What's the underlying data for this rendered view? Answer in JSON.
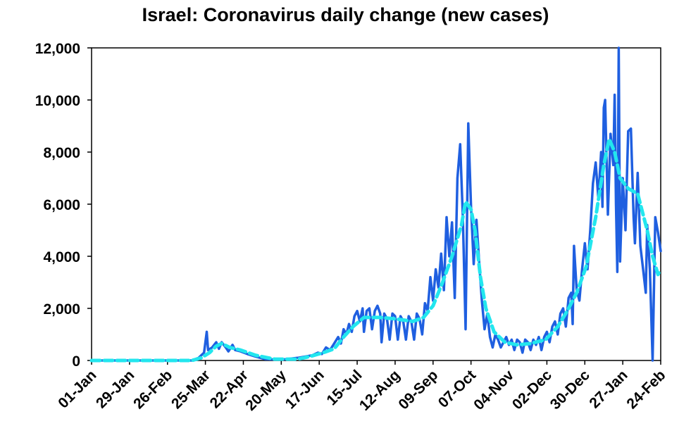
{
  "chart_data": {
    "type": "line",
    "title": "Israel: Coronavirus daily change (new cases)",
    "xlabel": "",
    "ylabel": "",
    "ylim": [
      0,
      12000
    ],
    "yticks": [
      "0",
      "2,000",
      "4,000",
      "6,000",
      "8,000",
      "10,000",
      "12,000"
    ],
    "ytick_values": [
      0,
      2000,
      4000,
      6000,
      8000,
      10000,
      12000
    ],
    "x_axis": {
      "type": "date",
      "range": [
        "2020-01-01",
        "2021-02-24"
      ]
    },
    "xticks": [
      "01-Jan",
      "29-Jan",
      "26-Feb",
      "25-Mar",
      "22-Apr",
      "20-May",
      "17-Jun",
      "15-Jul",
      "12-Aug",
      "09-Sep",
      "07-Oct",
      "04-Nov",
      "02-Dec",
      "30-Dec",
      "27-Jan",
      "24-Feb"
    ],
    "xtick_dates": [
      "2020-01-01",
      "2020-01-29",
      "2020-02-26",
      "2020-03-25",
      "2020-04-22",
      "2020-05-20",
      "2020-06-17",
      "2020-07-15",
      "2020-08-12",
      "2020-09-09",
      "2020-10-07",
      "2020-11-04",
      "2020-12-02",
      "2020-12-30",
      "2021-01-27",
      "2021-02-24"
    ],
    "grid": false,
    "legend": "none",
    "series": [
      {
        "color": "#1f5fe0",
        "style": "solid",
        "points": [
          [
            "2020-01-01",
            0
          ],
          [
            "2020-03-15",
            0
          ],
          [
            "2020-03-20",
            100
          ],
          [
            "2020-03-24",
            300
          ],
          [
            "2020-03-26",
            1100
          ],
          [
            "2020-03-27",
            400
          ],
          [
            "2020-03-30",
            500
          ],
          [
            "2020-04-02",
            700
          ],
          [
            "2020-04-04",
            450
          ],
          [
            "2020-04-06",
            700
          ],
          [
            "2020-04-09",
            500
          ],
          [
            "2020-04-11",
            350
          ],
          [
            "2020-04-14",
            600
          ],
          [
            "2020-04-16",
            400
          ],
          [
            "2020-04-20",
            350
          ],
          [
            "2020-04-25",
            250
          ],
          [
            "2020-05-01",
            150
          ],
          [
            "2020-05-08",
            50
          ],
          [
            "2020-05-20",
            30
          ],
          [
            "2020-06-01",
            100
          ],
          [
            "2020-06-07",
            150
          ],
          [
            "2020-06-12",
            200
          ],
          [
            "2020-06-16",
            300
          ],
          [
            "2020-06-19",
            250
          ],
          [
            "2020-06-22",
            500
          ],
          [
            "2020-06-25",
            400
          ],
          [
            "2020-06-28",
            650
          ],
          [
            "2020-07-01",
            900
          ],
          [
            "2020-07-03",
            650
          ],
          [
            "2020-07-05",
            1200
          ],
          [
            "2020-07-07",
            1000
          ],
          [
            "2020-07-09",
            1400
          ],
          [
            "2020-07-11",
            1100
          ],
          [
            "2020-07-13",
            1700
          ],
          [
            "2020-07-15",
            1900
          ],
          [
            "2020-07-17",
            1500
          ],
          [
            "2020-07-19",
            2000
          ],
          [
            "2020-07-20",
            1100
          ],
          [
            "2020-07-22",
            1900
          ],
          [
            "2020-07-24",
            2000
          ],
          [
            "2020-07-26",
            1200
          ],
          [
            "2020-07-28",
            1900
          ],
          [
            "2020-07-30",
            2100
          ],
          [
            "2020-08-01",
            1800
          ],
          [
            "2020-08-02",
            700
          ],
          [
            "2020-08-04",
            1800
          ],
          [
            "2020-08-06",
            1600
          ],
          [
            "2020-08-08",
            800
          ],
          [
            "2020-08-10",
            1800
          ],
          [
            "2020-08-12",
            1700
          ],
          [
            "2020-08-14",
            800
          ],
          [
            "2020-08-16",
            1700
          ],
          [
            "2020-08-18",
            1500
          ],
          [
            "2020-08-20",
            800
          ],
          [
            "2020-08-22",
            1700
          ],
          [
            "2020-08-24",
            1500
          ],
          [
            "2020-08-26",
            800
          ],
          [
            "2020-08-28",
            1800
          ],
          [
            "2020-08-30",
            1600
          ],
          [
            "2020-09-01",
            1000
          ],
          [
            "2020-09-03",
            2200
          ],
          [
            "2020-09-05",
            1900
          ],
          [
            "2020-09-07",
            3200
          ],
          [
            "2020-09-09",
            2300
          ],
          [
            "2020-09-11",
            3500
          ],
          [
            "2020-09-13",
            2800
          ],
          [
            "2020-09-15",
            4100
          ],
          [
            "2020-09-17",
            2700
          ],
          [
            "2020-09-19",
            5500
          ],
          [
            "2020-09-21",
            4000
          ],
          [
            "2020-09-23",
            5300
          ],
          [
            "2020-09-25",
            2400
          ],
          [
            "2020-09-27",
            7000
          ],
          [
            "2020-09-29",
            8300
          ],
          [
            "2020-10-01",
            5500
          ],
          [
            "2020-10-03",
            1200
          ],
          [
            "2020-10-05",
            9100
          ],
          [
            "2020-10-07",
            5900
          ],
          [
            "2020-10-09",
            3700
          ],
          [
            "2020-10-11",
            5400
          ],
          [
            "2020-10-13",
            3800
          ],
          [
            "2020-10-15",
            2300
          ],
          [
            "2020-10-17",
            1200
          ],
          [
            "2020-10-19",
            1800
          ],
          [
            "2020-10-21",
            900
          ],
          [
            "2020-10-23",
            500
          ],
          [
            "2020-10-25",
            1000
          ],
          [
            "2020-10-27",
            800
          ],
          [
            "2020-10-29",
            500
          ],
          [
            "2020-10-31",
            700
          ],
          [
            "2020-11-02",
            900
          ],
          [
            "2020-11-04",
            600
          ],
          [
            "2020-11-06",
            800
          ],
          [
            "2020-11-08",
            400
          ],
          [
            "2020-11-10",
            800
          ],
          [
            "2020-11-12",
            700
          ],
          [
            "2020-11-14",
            300
          ],
          [
            "2020-11-16",
            800
          ],
          [
            "2020-11-18",
            700
          ],
          [
            "2020-11-20",
            400
          ],
          [
            "2020-11-22",
            800
          ],
          [
            "2020-11-24",
            600
          ],
          [
            "2020-11-26",
            900
          ],
          [
            "2020-11-28",
            400
          ],
          [
            "2020-11-30",
            900
          ],
          [
            "2020-12-02",
            1100
          ],
          [
            "2020-12-04",
            700
          ],
          [
            "2020-12-06",
            1300
          ],
          [
            "2020-12-08",
            1500
          ],
          [
            "2020-12-10",
            1000
          ],
          [
            "2020-12-12",
            1800
          ],
          [
            "2020-12-14",
            2000
          ],
          [
            "2020-12-16",
            1300
          ],
          [
            "2020-12-18",
            2400
          ],
          [
            "2020-12-20",
            2600
          ],
          [
            "2020-12-21",
            1400
          ],
          [
            "2020-12-22",
            4400
          ],
          [
            "2020-12-24",
            2700
          ],
          [
            "2020-12-26",
            2300
          ],
          [
            "2020-12-28",
            3500
          ],
          [
            "2020-12-30",
            4500
          ],
          [
            "2021-01-01",
            3500
          ],
          [
            "2021-01-03",
            5000
          ],
          [
            "2021-01-05",
            6800
          ],
          [
            "2021-01-07",
            7600
          ],
          [
            "2021-01-09",
            6200
          ],
          [
            "2021-01-11",
            8000
          ],
          [
            "2021-01-12",
            5900
          ],
          [
            "2021-01-13",
            9700
          ],
          [
            "2021-01-14",
            10000
          ],
          [
            "2021-01-16",
            5600
          ],
          [
            "2021-01-18",
            8700
          ],
          [
            "2021-01-20",
            7500
          ],
          [
            "2021-01-21",
            10200
          ],
          [
            "2021-01-22",
            6000
          ],
          [
            "2021-01-23",
            3400
          ],
          [
            "2021-01-24",
            12000
          ],
          [
            "2021-01-25",
            3800
          ],
          [
            "2021-01-27",
            7000
          ],
          [
            "2021-01-29",
            5000
          ],
          [
            "2021-01-31",
            8800
          ],
          [
            "2021-02-02",
            8900
          ],
          [
            "2021-02-04",
            5500
          ],
          [
            "2021-02-05",
            4500
          ],
          [
            "2021-02-07",
            7200
          ],
          [
            "2021-02-09",
            4400
          ],
          [
            "2021-02-11",
            3500
          ],
          [
            "2021-02-13",
            2600
          ],
          [
            "2021-02-14",
            5200
          ],
          [
            "2021-02-16",
            3500
          ],
          [
            "2021-02-18",
            0
          ],
          [
            "2021-02-20",
            5500
          ],
          [
            "2021-02-22",
            4900
          ],
          [
            "2021-02-24",
            4200
          ]
        ]
      },
      {
        "color": "#22e6ee",
        "style": "dashed",
        "points": [
          [
            "2020-01-01",
            0
          ],
          [
            "2020-03-15",
            0
          ],
          [
            "2020-03-22",
            100
          ],
          [
            "2020-03-28",
            300
          ],
          [
            "2020-04-02",
            550
          ],
          [
            "2020-04-06",
            650
          ],
          [
            "2020-04-12",
            500
          ],
          [
            "2020-04-20",
            400
          ],
          [
            "2020-05-01",
            200
          ],
          [
            "2020-05-15",
            50
          ],
          [
            "2020-06-01",
            50
          ],
          [
            "2020-06-10",
            150
          ],
          [
            "2020-06-20",
            300
          ],
          [
            "2020-06-28",
            450
          ],
          [
            "2020-07-05",
            900
          ],
          [
            "2020-07-12",
            1300
          ],
          [
            "2020-07-20",
            1650
          ],
          [
            "2020-08-01",
            1650
          ],
          [
            "2020-08-12",
            1600
          ],
          [
            "2020-08-25",
            1500
          ],
          [
            "2020-09-02",
            1650
          ],
          [
            "2020-09-09",
            2100
          ],
          [
            "2020-09-16",
            3000
          ],
          [
            "2020-09-23",
            4000
          ],
          [
            "2020-09-30",
            5200
          ],
          [
            "2020-10-03",
            6100
          ],
          [
            "2020-10-07",
            5800
          ],
          [
            "2020-10-10",
            5000
          ],
          [
            "2020-10-14",
            3200
          ],
          [
            "2020-10-18",
            2000
          ],
          [
            "2020-10-24",
            1100
          ],
          [
            "2020-11-01",
            700
          ],
          [
            "2020-11-10",
            600
          ],
          [
            "2020-11-20",
            650
          ],
          [
            "2020-12-01",
            800
          ],
          [
            "2020-12-10",
            1300
          ],
          [
            "2020-12-17",
            1900
          ],
          [
            "2020-12-24",
            2600
          ],
          [
            "2020-12-31",
            3600
          ],
          [
            "2021-01-07",
            5500
          ],
          [
            "2021-01-13",
            7500
          ],
          [
            "2021-01-17",
            8500
          ],
          [
            "2021-01-21",
            8000
          ],
          [
            "2021-01-25",
            7000
          ],
          [
            "2021-01-31",
            6600
          ],
          [
            "2021-02-07",
            6400
          ],
          [
            "2021-02-14",
            5000
          ],
          [
            "2021-02-18",
            4000
          ],
          [
            "2021-02-22",
            3300
          ],
          [
            "2021-02-24",
            3500
          ]
        ]
      }
    ]
  }
}
